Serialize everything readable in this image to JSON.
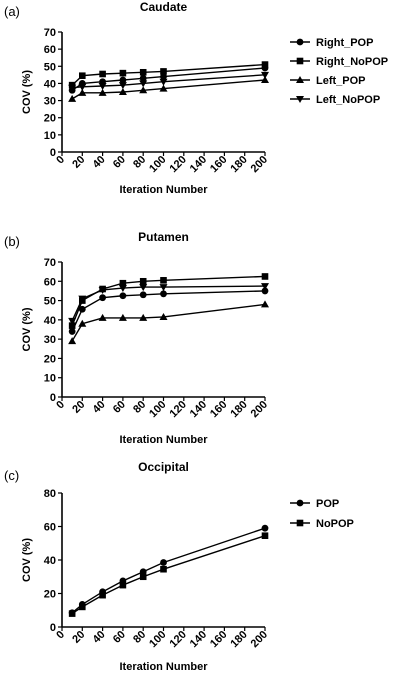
{
  "chart_data": [
    {
      "type": "line",
      "panel_label": "(a)",
      "title": "Caudate",
      "xlabel": "Iteration Number",
      "ylabel": "COV (%)",
      "xlim": [
        0,
        200
      ],
      "ylim": [
        0,
        70
      ],
      "xticks": [
        "0",
        "20",
        "40",
        "60",
        "80",
        "100",
        "120",
        "140",
        "160",
        "180",
        "200"
      ],
      "yticks": [
        "0",
        "10",
        "20",
        "30",
        "40",
        "50",
        "60",
        "70"
      ],
      "x": [
        10,
        20,
        40,
        60,
        80,
        100,
        200
      ],
      "legend_position": "right",
      "series": [
        {
          "name": "Right_POP",
          "marker": "circle",
          "values": [
            36,
            40,
            41,
            42,
            43,
            44,
            49
          ]
        },
        {
          "name": "Right_NoPOP",
          "marker": "square",
          "values": [
            39,
            44.5,
            45.5,
            46,
            46.5,
            47,
            51
          ]
        },
        {
          "name": "Left_POP",
          "marker": "triangle-up",
          "values": [
            31,
            34.5,
            34.5,
            35,
            36,
            37,
            42
          ]
        },
        {
          "name": "Left_NoPOP",
          "marker": "triangle-down",
          "values": [
            37.5,
            38,
            38.5,
            39,
            40,
            41,
            45
          ]
        }
      ]
    },
    {
      "type": "line",
      "panel_label": "(b)",
      "title": "Putamen",
      "xlabel": "Iteration Number",
      "ylabel": "COV (%)",
      "xlim": [
        0,
        200
      ],
      "ylim": [
        0,
        70
      ],
      "xticks": [
        "0",
        "20",
        "40",
        "60",
        "80",
        "100",
        "120",
        "140",
        "160",
        "180",
        "200"
      ],
      "yticks": [
        "0",
        "10",
        "20",
        "30",
        "40",
        "50",
        "60",
        "70"
      ],
      "x": [
        10,
        20,
        40,
        60,
        80,
        100,
        200
      ],
      "series": [
        {
          "name": "Right_POP",
          "marker": "circle",
          "values": [
            34,
            45.5,
            51.5,
            52.5,
            53,
            53.5,
            55
          ]
        },
        {
          "name": "Right_NoPOP",
          "marker": "square",
          "values": [
            37,
            50,
            56,
            59,
            60,
            60.5,
            62.5
          ]
        },
        {
          "name": "Left_POP",
          "marker": "triangle-up",
          "values": [
            29,
            38,
            41,
            41,
            41,
            41.5,
            48
          ]
        },
        {
          "name": "Left_NoPOP",
          "marker": "triangle-down",
          "values": [
            39.5,
            51,
            55.5,
            56.5,
            57,
            57,
            57.5
          ]
        }
      ]
    },
    {
      "type": "line",
      "panel_label": "(c)",
      "title": "Occipital",
      "xlabel": "Iteration Number",
      "ylabel": "COV (%)",
      "xlim": [
        0,
        200
      ],
      "ylim": [
        0,
        80
      ],
      "xticks": [
        "0",
        "20",
        "40",
        "60",
        "80",
        "100",
        "120",
        "140",
        "160",
        "180",
        "200"
      ],
      "yticks": [
        "0",
        "20",
        "40",
        "60",
        "80"
      ],
      "x": [
        10,
        20,
        40,
        60,
        80,
        100,
        200
      ],
      "legend_position": "right",
      "series": [
        {
          "name": "POP",
          "marker": "circle",
          "values": [
            8.5,
            13.5,
            21,
            27.5,
            33,
            38.5,
            59
          ]
        },
        {
          "name": "NoPOP",
          "marker": "square",
          "values": [
            8,
            12,
            19,
            25,
            30,
            34.5,
            54.5
          ]
        }
      ]
    }
  ]
}
